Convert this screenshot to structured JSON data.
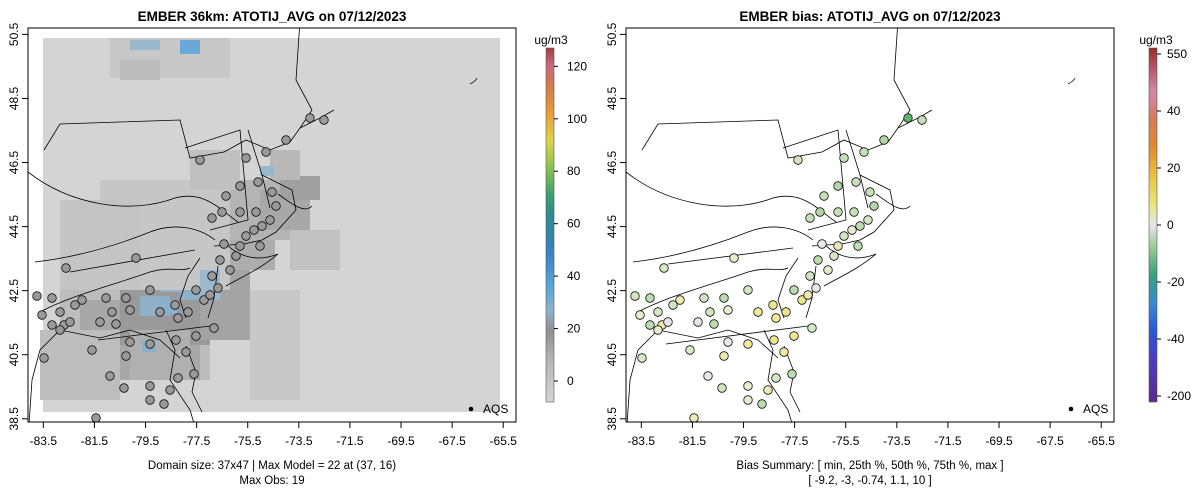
{
  "chart_data": [
    {
      "type": "gridded-map",
      "title": "EMBER 36km: ATOTIJ_AVG on 07/12/2023",
      "x_ticks": [
        "-83.5",
        "-81.5",
        "-79.5",
        "-77.5",
        "-75.5",
        "-73.5",
        "-71.5",
        "-69.5",
        "-67.5",
        "-65.5"
      ],
      "y_ticks": [
        "38.5",
        "40.5",
        "42.5",
        "44.5",
        "46.5",
        "48.5",
        "50.5"
      ],
      "xlim": [
        -84.1,
        -65.0
      ],
      "ylim": [
        38.4,
        50.7
      ],
      "colorbar": {
        "unit": "ug/m3",
        "ticks": [
          "0",
          "20",
          "40",
          "60",
          "80",
          "100",
          "120"
        ],
        "range": [
          -8,
          127
        ]
      },
      "legend": "AQS",
      "caption_lines": [
        "Domain size: 37x47 | Max Model = 22 at (37, 16)",
        "Max Obs: 19"
      ]
    },
    {
      "type": "scatter-map",
      "title": "EMBER bias: ATOTIJ_AVG on 07/12/2023",
      "x_ticks": [
        "-83.5",
        "-81.5",
        "-79.5",
        "-77.5",
        "-75.5",
        "-73.5",
        "-71.5",
        "-69.5",
        "-67.5",
        "-65.5"
      ],
      "y_ticks": [
        "38.5",
        "40.5",
        "42.5",
        "44.5",
        "46.5",
        "48.5",
        "50.5"
      ],
      "xlim": [
        -84.1,
        -65.0
      ],
      "ylim": [
        38.4,
        50.7
      ],
      "colorbar": {
        "unit": "ug/m3",
        "ticks": [
          "550",
          "40",
          "20",
          "0",
          "-20",
          "-40",
          "-200"
        ]
      },
      "legend": "AQS",
      "caption_lines": [
        "Bias Summary: [ min, 25th %, 50th %, 75th %, max ]",
        "[ -9.2,   -3,   -0.74,   1.1,   10 ]"
      ],
      "bias_summary": {
        "min": -9.2,
        "p25": -3,
        "p50": -0.74,
        "p75": 1.1,
        "max": 10
      }
    }
  ]
}
